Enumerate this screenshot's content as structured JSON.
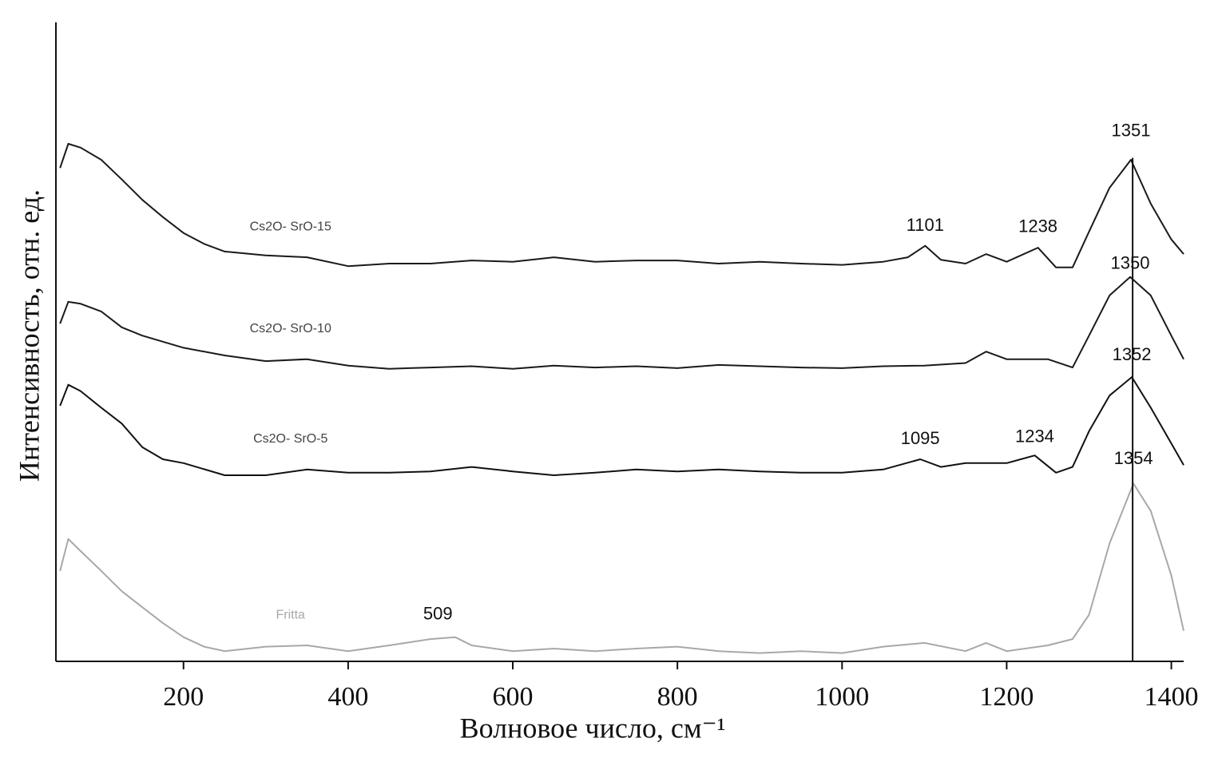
{
  "chart_data": {
    "type": "line",
    "x_label": "Волновое число, см⁻¹",
    "y_label": "Интенсивность, отн. ед.",
    "xlim": [
      45,
      1415
    ],
    "ylim": [
      0,
      100
    ],
    "xticks": [
      200,
      400,
      600,
      800,
      1000,
      1200,
      1400
    ],
    "reference_line": {
      "x": 1353,
      "color": "#111"
    },
    "series": [
      {
        "name": "Cs2O- SrO-15",
        "color": "#1a1a1a",
        "x": [
          50,
          60,
          75,
          100,
          125,
          150,
          175,
          200,
          225,
          250,
          300,
          350,
          400,
          450,
          500,
          550,
          600,
          650,
          700,
          750,
          800,
          850,
          900,
          950,
          1000,
          1050,
          1080,
          1101,
          1120,
          1150,
          1175,
          1200,
          1238,
          1260,
          1280,
          1300,
          1325,
          1351,
          1375,
          1400,
          1415
        ],
        "values": [
          77.4,
          81.2,
          80.6,
          78.7,
          75.6,
          72.4,
          69.7,
          67.2,
          65.5,
          64.3,
          63.7,
          63.4,
          62.0,
          62.4,
          62.4,
          62.9,
          62.7,
          63.4,
          62.7,
          62.9,
          62.9,
          62.4,
          62.7,
          62.4,
          62.2,
          62.7,
          63.4,
          65.2,
          63.0,
          62.4,
          63.9,
          62.7,
          64.9,
          61.8,
          61.8,
          67.4,
          74.3,
          78.7,
          71.8,
          66.2,
          63.9
        ]
      },
      {
        "name": "Cs2O- SrO-10",
        "color": "#1a1a1a",
        "x": [
          50,
          60,
          75,
          100,
          125,
          150,
          200,
          250,
          300,
          350,
          400,
          450,
          500,
          550,
          600,
          650,
          700,
          750,
          800,
          850,
          900,
          950,
          1000,
          1050,
          1100,
          1150,
          1175,
          1200,
          1250,
          1280,
          1300,
          1325,
          1350,
          1375,
          1400,
          1415
        ],
        "values": [
          53.0,
          56.4,
          56.1,
          54.9,
          52.4,
          51.1,
          49.2,
          48.0,
          47.1,
          47.4,
          46.4,
          45.9,
          46.1,
          46.3,
          45.9,
          46.4,
          46.1,
          46.3,
          46.0,
          46.5,
          46.3,
          46.1,
          46.0,
          46.3,
          46.4,
          46.8,
          48.6,
          47.4,
          47.4,
          46.1,
          51.1,
          57.4,
          60.3,
          57.4,
          51.1,
          47.4
        ]
      },
      {
        "name": "Cs2O- SrO-5",
        "color": "#111111",
        "x": [
          50,
          60,
          75,
          100,
          125,
          150,
          175,
          200,
          250,
          300,
          350,
          400,
          450,
          500,
          550,
          600,
          650,
          700,
          750,
          800,
          850,
          900,
          950,
          1000,
          1050,
          1095,
          1120,
          1150,
          1200,
          1234,
          1260,
          1280,
          1300,
          1325,
          1352,
          1375,
          1400,
          1415
        ],
        "values": [
          40.1,
          43.4,
          42.4,
          39.8,
          37.3,
          33.6,
          31.7,
          31.1,
          29.2,
          29.2,
          30.1,
          29.6,
          29.6,
          29.8,
          30.5,
          29.8,
          29.2,
          29.6,
          30.1,
          29.8,
          30.1,
          29.8,
          29.6,
          29.6,
          30.1,
          31.7,
          30.5,
          31.1,
          31.1,
          32.3,
          29.6,
          30.5,
          36.1,
          41.7,
          44.6,
          39.8,
          34.2,
          30.8
        ]
      },
      {
        "name": "Fritta",
        "color": "#a8a8a8",
        "x": [
          50,
          60,
          75,
          100,
          125,
          150,
          175,
          200,
          225,
          250,
          300,
          350,
          400,
          450,
          500,
          530,
          550,
          600,
          650,
          700,
          750,
          800,
          850,
          900,
          950,
          1000,
          1050,
          1100,
          1150,
          1175,
          1200,
          1250,
          1280,
          1300,
          1325,
          1354,
          1375,
          1400,
          1415
        ],
        "values": [
          14.2,
          19.2,
          17.3,
          14.2,
          11.0,
          8.5,
          6.0,
          3.8,
          2.3,
          1.6,
          2.3,
          2.5,
          1.6,
          2.5,
          3.5,
          3.8,
          2.5,
          1.6,
          2.0,
          1.6,
          2.0,
          2.3,
          1.6,
          1.3,
          1.6,
          1.3,
          2.3,
          2.9,
          1.6,
          2.9,
          1.6,
          2.5,
          3.5,
          7.3,
          18.5,
          27.9,
          23.6,
          13.5,
          4.8
        ]
      }
    ],
    "annotations": [
      {
        "text": "1351",
        "x": 1351,
        "y": 83.1
      },
      {
        "text": "1101",
        "x": 1101,
        "y": 68.3
      },
      {
        "text": "1238",
        "x": 1238,
        "y": 68.1
      },
      {
        "text": "1350",
        "x": 1350,
        "y": 62.3
      },
      {
        "text": "1352",
        "x": 1352,
        "y": 48.0
      },
      {
        "text": "1095",
        "x": 1095,
        "y": 34.8
      },
      {
        "text": "1234",
        "x": 1234,
        "y": 35.1
      },
      {
        "text": "1354",
        "x": 1354,
        "y": 31.7
      },
      {
        "text": "509",
        "x": 509,
        "y": 7.3
      }
    ]
  }
}
